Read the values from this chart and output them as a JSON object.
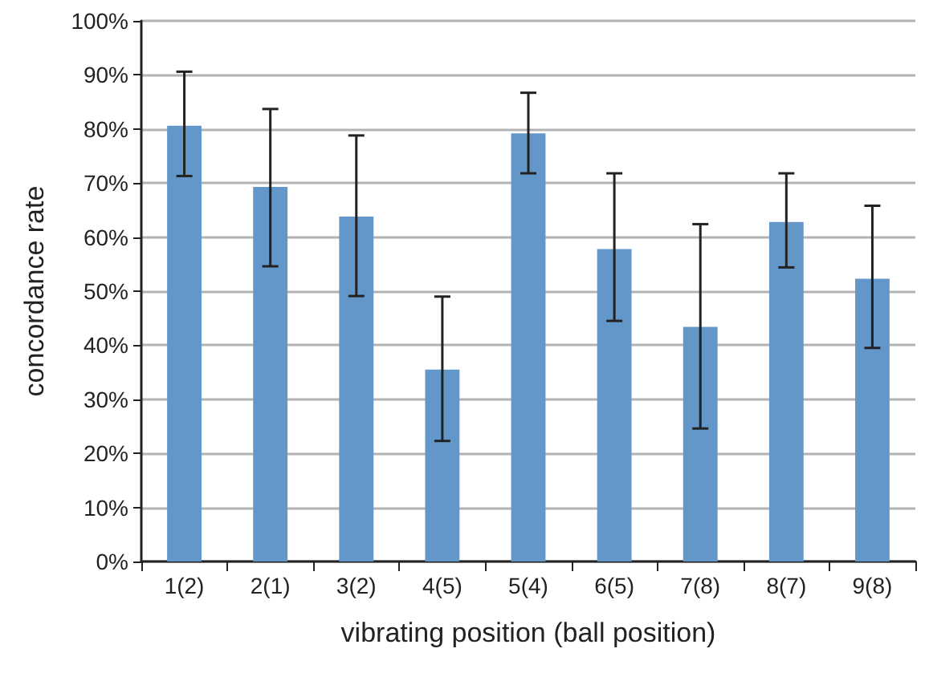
{
  "chart_data": {
    "type": "bar",
    "xlabel": "vibrating position (ball position)",
    "ylabel": "concordance rate",
    "categories": [
      "1(2)",
      "2(1)",
      "3(2)",
      "4(5)",
      "5(4)",
      "6(5)",
      "7(8)",
      "8(7)",
      "9(8)"
    ],
    "values": [
      80.6,
      69.3,
      63.8,
      35.5,
      79.2,
      57.8,
      43.4,
      62.8,
      52.3
    ],
    "errors": [
      [
        71.3,
        90.6
      ],
      [
        54.6,
        83.7
      ],
      [
        49.1,
        78.8
      ],
      [
        22.3,
        49.0
      ],
      [
        71.8,
        86.7
      ],
      [
        44.5,
        71.8
      ],
      [
        24.6,
        62.4
      ],
      [
        54.4,
        71.8
      ],
      [
        39.5,
        65.8
      ]
    ],
    "color": "#6497c9",
    "ylim": [
      0,
      100
    ],
    "yticks": [
      {
        "value": 0,
        "label": "0%"
      },
      {
        "value": 10,
        "label": "10%"
      },
      {
        "value": 20,
        "label": "20%"
      },
      {
        "value": 30,
        "label": "30%"
      },
      {
        "value": 40,
        "label": "40%"
      },
      {
        "value": 50,
        "label": "50%"
      },
      {
        "value": 60,
        "label": "60%"
      },
      {
        "value": 70,
        "label": "70%"
      },
      {
        "value": 80,
        "label": "80%"
      },
      {
        "value": 90,
        "label": "90%"
      },
      {
        "value": 100,
        "label": "100%"
      }
    ],
    "grid": "y"
  }
}
